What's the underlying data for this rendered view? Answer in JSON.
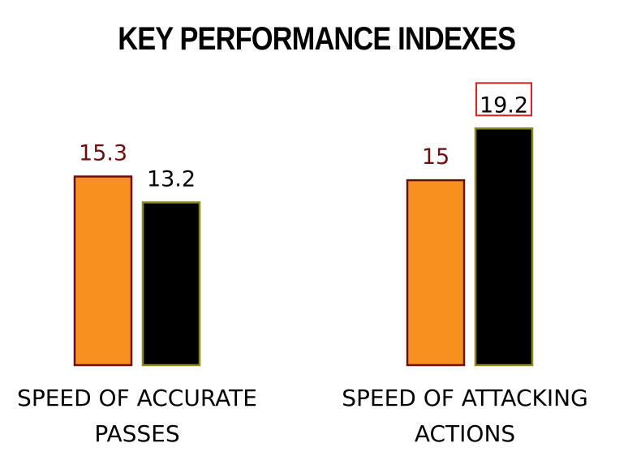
{
  "chart_data": {
    "type": "bar",
    "title": "KEY PERFORMANCE INDEXES",
    "categories": [
      [
        "SPEED OF ACCURATE",
        "PASSES"
      ],
      [
        "SPEED OF ATTACKING",
        "ACTIONS"
      ]
    ],
    "series": [
      {
        "values": [
          15.3,
          15
        ],
        "value_labels": [
          "15.3",
          "15"
        ],
        "color": "#F7901E",
        "outline": "#6B0F0F",
        "label_color": "#6B0F0F"
      },
      {
        "values": [
          13.2,
          19.2
        ],
        "value_labels": [
          "13.2",
          "19.2"
        ],
        "color": "#000000",
        "outline": "#8A8A1A",
        "label_color": "#000000"
      }
    ],
    "highlighted_label": {
      "series": 1,
      "category": 1,
      "box_color": "#E02020"
    },
    "xlabel": "",
    "ylabel": "",
    "ylim": [
      0,
      20.8
    ],
    "grid": false,
    "legend": "none"
  }
}
